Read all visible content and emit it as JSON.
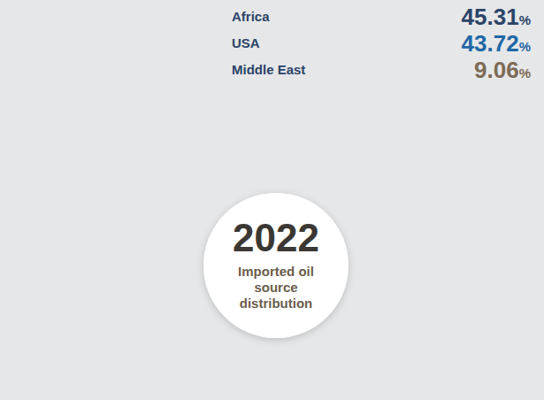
{
  "chart_data": {
    "type": "radial_bar",
    "title": "2022",
    "subtitle": "Imported oil source distribution",
    "categories": [
      "Africa",
      "USA",
      "Middle East"
    ],
    "values": [
      45.31,
      43.72,
      9.06
    ],
    "value_labels": [
      "45.31%",
      "43.72%",
      "9.06%"
    ],
    "colors": [
      "#2b4468",
      "#1f67a6",
      "#7c6b55"
    ],
    "data_labels": true
  }
}
